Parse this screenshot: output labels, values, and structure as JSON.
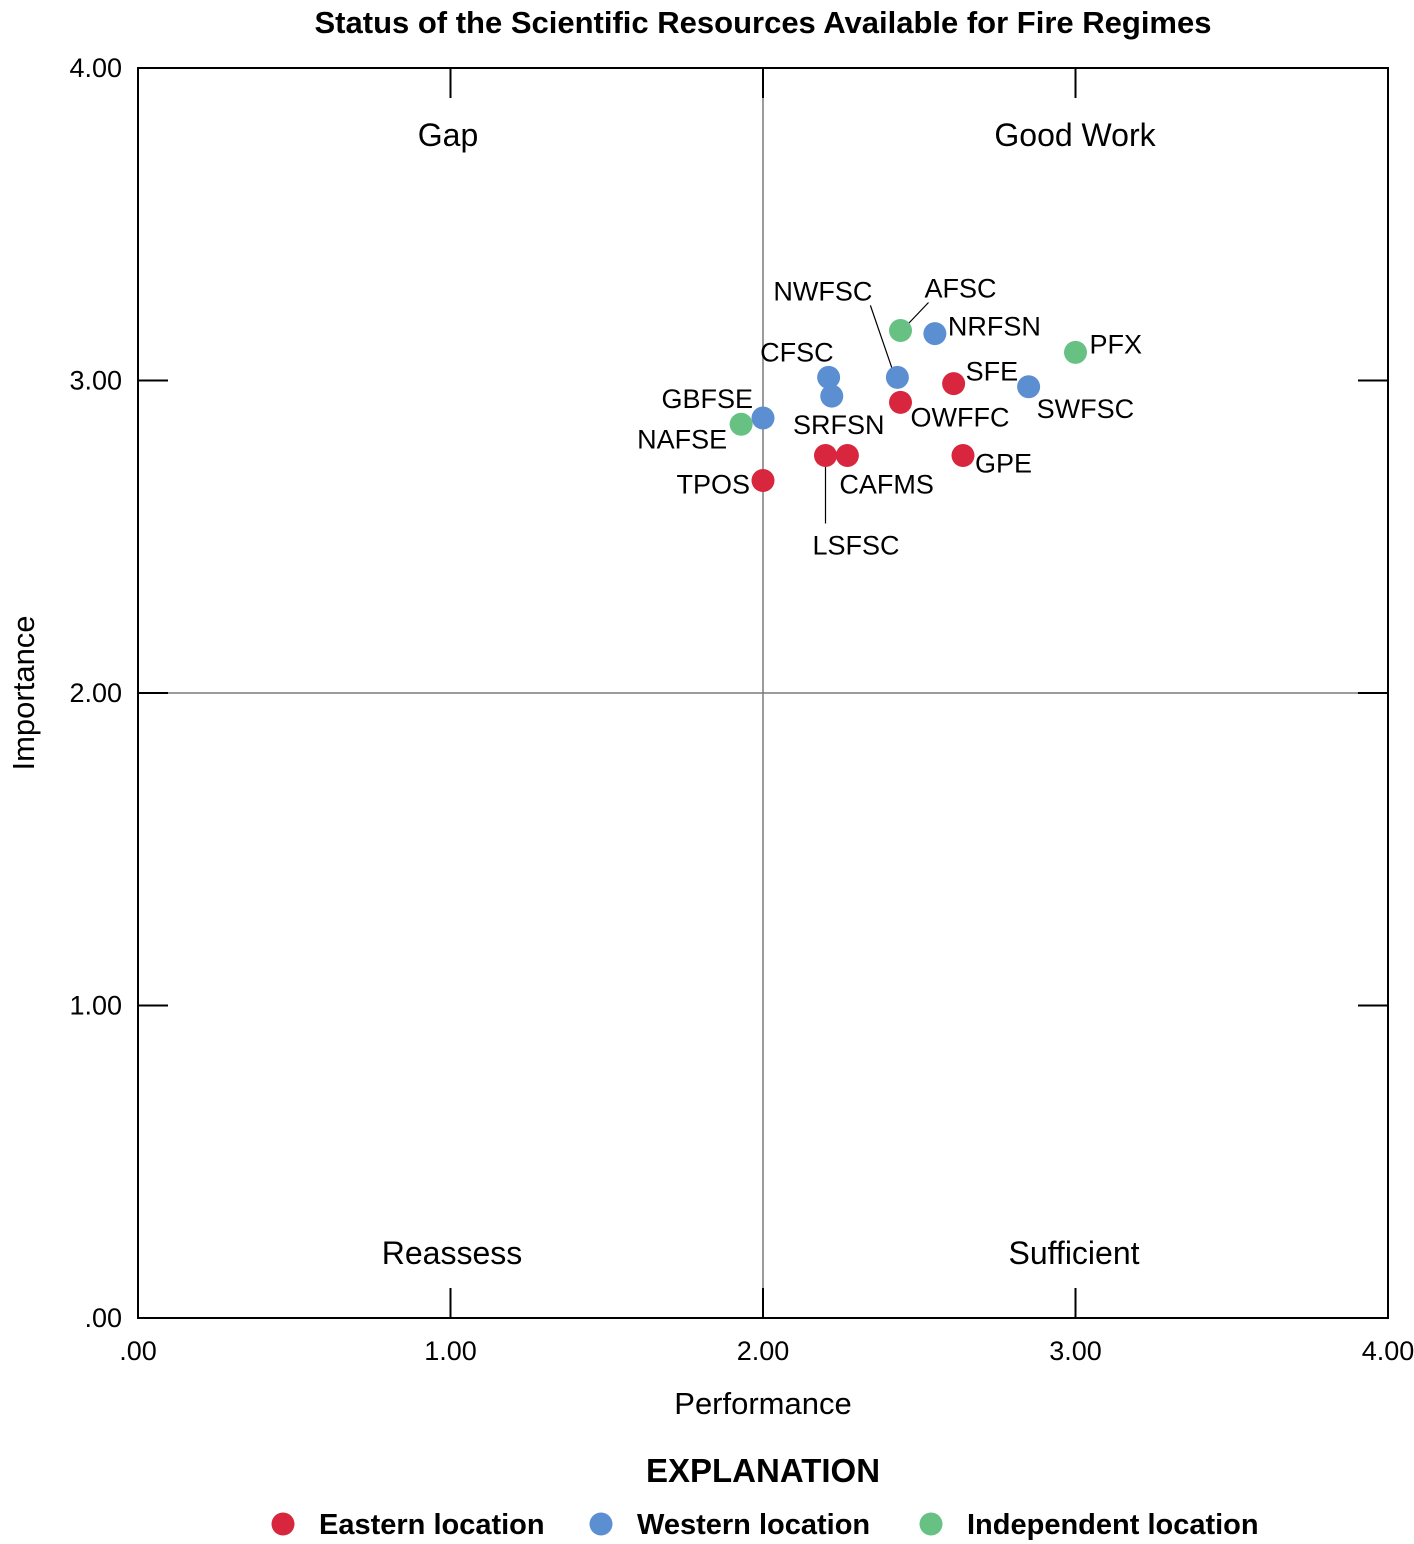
{
  "chart_data": {
    "type": "scatter",
    "title": "Status of the Scientific Resources Available for Fire Regimes",
    "xlabel": "Performance",
    "ylabel": "Importance",
    "xlim": [
      0,
      4
    ],
    "ylim": [
      0,
      4
    ],
    "x_ticks": [
      ".00",
      "1.00",
      "2.00",
      "3.00",
      "4.00"
    ],
    "y_ticks": [
      ".00",
      "1.00",
      "2.00",
      "3.00",
      "4.00"
    ],
    "reference_lines": {
      "x": 2.0,
      "y": 2.0
    },
    "quadrants": {
      "top_left": "Gap",
      "top_right": "Good Work",
      "bottom_left": "Reassess",
      "bottom_right": "Sufficient"
    },
    "legend_title": "EXPLANATION",
    "categories": [
      {
        "key": "eastern",
        "label": "Eastern location",
        "color": "#d7263d"
      },
      {
        "key": "western",
        "label": "Western location",
        "color": "#5b8fd1"
      },
      {
        "key": "independent",
        "label": "Independent location",
        "color": "#66c183"
      }
    ],
    "points": [
      {
        "label": "AFSC",
        "x": 2.44,
        "y": 3.16,
        "category": "independent"
      },
      {
        "label": "NRFSN",
        "x": 2.55,
        "y": 3.15,
        "category": "western"
      },
      {
        "label": "PFX",
        "x": 3.0,
        "y": 3.09,
        "category": "independent"
      },
      {
        "label": "NWFSC",
        "x": 2.43,
        "y": 3.01,
        "category": "western"
      },
      {
        "label": "CFSC",
        "x": 2.21,
        "y": 3.01,
        "category": "western"
      },
      {
        "label": "SFE",
        "x": 2.61,
        "y": 2.99,
        "category": "eastern"
      },
      {
        "label": "SWFSC",
        "x": 2.85,
        "y": 2.98,
        "category": "western"
      },
      {
        "label": "SRFSN",
        "x": 2.22,
        "y": 2.95,
        "category": "western"
      },
      {
        "label": "OWFFC",
        "x": 2.44,
        "y": 2.93,
        "category": "eastern"
      },
      {
        "label": "GBFSE",
        "x": 2.0,
        "y": 2.88,
        "category": "western"
      },
      {
        "label": "NAFSE",
        "x": 1.93,
        "y": 2.86,
        "category": "independent"
      },
      {
        "label": "LSFSC",
        "x": 2.2,
        "y": 2.76,
        "category": "eastern"
      },
      {
        "label": "CAFMS",
        "x": 2.27,
        "y": 2.76,
        "category": "eastern"
      },
      {
        "label": "GPE",
        "x": 2.64,
        "y": 2.76,
        "category": "eastern"
      },
      {
        "label": "TPOS",
        "x": 2.0,
        "y": 2.68,
        "category": "eastern"
      }
    ]
  }
}
